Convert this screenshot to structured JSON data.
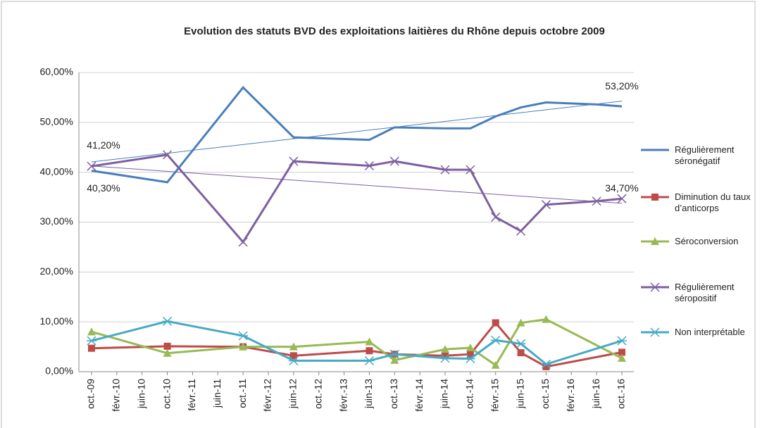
{
  "chart_data": {
    "type": "line",
    "title": "Evolution des statuts BVD des exploitations laitières du Rhône depuis octobre 2009",
    "categories": [
      "oct.-09",
      "févr.-10",
      "juin-10",
      "oct.-10",
      "févr.-11",
      "juin-11",
      "oct.-11",
      "févr.-12",
      "juin-12",
      "oct.-12",
      "févr.-13",
      "juin-13",
      "oct.-13",
      "févr.-14",
      "juin-14",
      "oct.-14",
      "févr.-15",
      "juin-15",
      "oct.-15",
      "févr.-16",
      "juin-16",
      "oct.-16"
    ],
    "ylim": [
      0,
      60
    ],
    "yticks": [
      {
        "value": 0,
        "label": "0,00%"
      },
      {
        "value": 10,
        "label": "10,00%"
      },
      {
        "value": 20,
        "label": "20,00%"
      },
      {
        "value": 30,
        "label": "30,00%"
      },
      {
        "value": 40,
        "label": "40,00%"
      },
      {
        "value": 50,
        "label": "50,00%"
      },
      {
        "value": 60,
        "label": "60,00%"
      }
    ],
    "grid": true,
    "legend": "right",
    "series": [
      {
        "name": "Régulièrement séronégatif",
        "color": "#4a7ebb",
        "marker": "none",
        "trendline": true,
        "x": [
          "oct.-09",
          "oct.-10",
          "oct.-11",
          "juin-12",
          "juin-13",
          "oct.-13",
          "juin-14",
          "oct.-14",
          "févr.-15",
          "juin-15",
          "oct.-15",
          "juin-16",
          "oct.-16"
        ],
        "values": [
          40.3,
          38,
          57,
          47,
          46.5,
          49,
          48.8,
          48.8,
          51.2,
          53,
          54,
          53.6,
          53.2
        ],
        "value_labels": [
          "40,30%",
          null,
          null,
          null,
          null,
          null,
          null,
          null,
          null,
          null,
          null,
          null,
          "53,20%"
        ]
      },
      {
        "name": "Diminution du taux d’anticorps",
        "color": "#be4b48",
        "marker": "square",
        "trendline": false,
        "x": [
          "oct.-09",
          "oct.-10",
          "oct.-11",
          "juin-12",
          "juin-13",
          "oct.-13",
          "juin-14",
          "oct.-14",
          "févr.-15",
          "juin-15",
          "oct.-15",
          "oct.-16"
        ],
        "values": [
          4.7,
          5.1,
          5.0,
          3.2,
          4.2,
          3.5,
          3.2,
          3.5,
          9.8,
          3.8,
          1.0,
          3.9
        ]
      },
      {
        "name": "Séroconversion",
        "color": "#98b954",
        "marker": "triangle",
        "trendline": false,
        "x": [
          "oct.-09",
          "oct.-10",
          "oct.-11",
          "juin-12",
          "juin-13",
          "oct.-13",
          "juin-14",
          "oct.-14",
          "févr.-15",
          "juin-15",
          "oct.-15",
          "oct.-16"
        ],
        "values": [
          8,
          3.7,
          5.0,
          5.0,
          6,
          2.3,
          4.5,
          4.8,
          1.3,
          9.8,
          10.5,
          2.7
        ]
      },
      {
        "name": "Régulièrement séropositif",
        "color": "#7d60a0",
        "marker": "x",
        "trendline": true,
        "x": [
          "oct.-09",
          "oct.-10",
          "oct.-11",
          "juin-12",
          "juin-13",
          "oct.-13",
          "juin-14",
          "oct.-14",
          "févr.-15",
          "juin-15",
          "oct.-15",
          "juin-16",
          "oct.-16"
        ],
        "values": [
          41.2,
          43.5,
          26,
          42.2,
          41.3,
          42.2,
          40.5,
          40.5,
          31,
          28.2,
          33.5,
          34.2,
          34.7
        ],
        "value_labels": [
          "41,20%",
          null,
          null,
          null,
          null,
          null,
          null,
          null,
          null,
          null,
          null,
          null,
          "34,70%"
        ]
      },
      {
        "name": "Non interprétable",
        "color": "#46aac5",
        "marker": "asterisk",
        "trendline": false,
        "x": [
          "oct.-09",
          "oct.-10",
          "oct.-11",
          "juin-12",
          "juin-13",
          "oct.-13",
          "juin-14",
          "oct.-14",
          "févr.-15",
          "juin-15",
          "oct.-15",
          "oct.-16"
        ],
        "values": [
          6.2,
          10.1,
          7.2,
          2.2,
          2.2,
          3.5,
          2.7,
          2.6,
          6.3,
          5.6,
          1.5,
          6.2
        ]
      }
    ]
  }
}
